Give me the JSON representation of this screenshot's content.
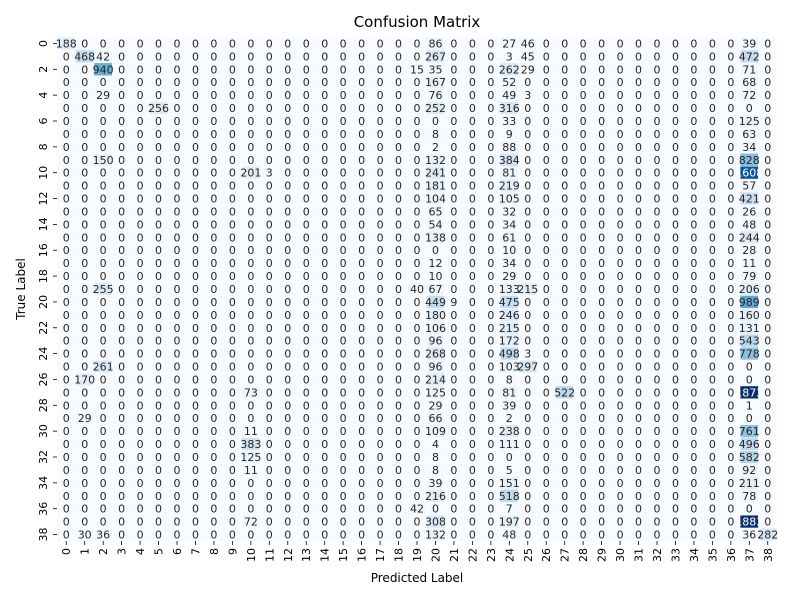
{
  "chart_data": {
    "type": "heatmap",
    "title": "Confusion Matrix",
    "xlabel": "Predicted Label",
    "ylabel": "True Label",
    "row_labels": [
      "0",
      "1",
      "2",
      "3",
      "4",
      "5",
      "6",
      "7",
      "8",
      "9",
      "10",
      "11",
      "12",
      "13",
      "14",
      "15",
      "16",
      "17",
      "18",
      "19",
      "20",
      "21",
      "22",
      "23",
      "24",
      "25",
      "26",
      "27",
      "28",
      "29",
      "30",
      "31",
      "32",
      "33",
      "34",
      "35",
      "36",
      "37",
      "38"
    ],
    "x_tick_labels": [
      "0",
      "1",
      "2",
      "3",
      "4",
      "5",
      "6",
      "7",
      "8",
      "9",
      "10",
      "11",
      "12",
      "13",
      "14",
      "15",
      "16",
      "17",
      "18",
      "19",
      "20",
      "21",
      "22",
      "23",
      "24",
      "25",
      "26",
      "27",
      "28",
      "29",
      "30",
      "31",
      "32",
      "33",
      "34",
      "35",
      "36",
      "37",
      "38"
    ],
    "y_tick_labels": [
      "0",
      "2",
      "4",
      "6",
      "8",
      "10",
      "12",
      "14",
      "16",
      "18",
      "20",
      "22",
      "24",
      "26",
      "28",
      "30",
      "32",
      "34",
      "36",
      "38"
    ],
    "colormap": [
      "#f7fbff",
      "#deebf7",
      "#c6dbef",
      "#9ecae1",
      "#6baed6",
      "#4292c6",
      "#2171b5",
      "#08519c",
      "#08306b"
    ],
    "vmin": 0,
    "vmax": 1883,
    "matrix": [
      [
        188,
        0,
        0,
        0,
        0,
        0,
        0,
        0,
        0,
        0,
        0,
        0,
        0,
        0,
        0,
        0,
        0,
        0,
        0,
        0,
        86,
        0,
        0,
        0,
        27,
        46,
        0,
        0,
        0,
        0,
        0,
        0,
        0,
        0,
        0,
        0,
        0,
        39,
        0
      ],
      [
        0,
        468,
        42,
        0,
        0,
        0,
        0,
        0,
        0,
        0,
        0,
        0,
        0,
        0,
        0,
        0,
        0,
        0,
        0,
        0,
        267,
        0,
        0,
        0,
        3,
        45,
        0,
        0,
        0,
        0,
        0,
        0,
        0,
        0,
        0,
        0,
        0,
        472,
        0
      ],
      [
        0,
        0,
        940,
        0,
        0,
        0,
        0,
        0,
        0,
        0,
        0,
        0,
        0,
        0,
        0,
        0,
        0,
        0,
        0,
        15,
        35,
        0,
        0,
        0,
        262,
        29,
        0,
        0,
        0,
        0,
        0,
        0,
        0,
        0,
        0,
        0,
        0,
        71,
        0
      ],
      [
        0,
        0,
        0,
        0,
        0,
        0,
        0,
        0,
        0,
        0,
        0,
        0,
        0,
        0,
        0,
        0,
        0,
        0,
        0,
        0,
        167,
        0,
        0,
        0,
        52,
        0,
        0,
        0,
        0,
        0,
        0,
        0,
        0,
        0,
        0,
        0,
        0,
        68,
        0
      ],
      [
        0,
        0,
        29,
        0,
        0,
        0,
        0,
        0,
        0,
        0,
        0,
        0,
        0,
        0,
        0,
        0,
        0,
        0,
        0,
        0,
        76,
        0,
        0,
        0,
        49,
        3,
        0,
        0,
        0,
        0,
        0,
        0,
        0,
        0,
        0,
        0,
        0,
        72,
        0
      ],
      [
        0,
        0,
        0,
        0,
        0,
        256,
        0,
        0,
        0,
        0,
        0,
        0,
        0,
        0,
        0,
        0,
        0,
        0,
        0,
        0,
        252,
        0,
        0,
        0,
        316,
        0,
        0,
        0,
        0,
        0,
        0,
        0,
        0,
        0,
        0,
        0,
        0,
        0,
        0
      ],
      [
        0,
        0,
        0,
        0,
        0,
        0,
        0,
        0,
        0,
        0,
        0,
        0,
        0,
        0,
        0,
        0,
        0,
        0,
        0,
        0,
        0,
        0,
        0,
        0,
        33,
        0,
        0,
        0,
        0,
        0,
        0,
        0,
        0,
        0,
        0,
        0,
        0,
        125,
        0
      ],
      [
        0,
        0,
        0,
        0,
        0,
        0,
        0,
        0,
        0,
        0,
        0,
        0,
        0,
        0,
        0,
        0,
        0,
        0,
        0,
        0,
        8,
        0,
        0,
        0,
        9,
        0,
        0,
        0,
        0,
        0,
        0,
        0,
        0,
        0,
        0,
        0,
        0,
        63,
        0
      ],
      [
        0,
        0,
        0,
        0,
        0,
        0,
        0,
        0,
        0,
        0,
        0,
        0,
        0,
        0,
        0,
        0,
        0,
        0,
        0,
        0,
        2,
        0,
        0,
        0,
        88,
        0,
        0,
        0,
        0,
        0,
        0,
        0,
        0,
        0,
        0,
        0,
        0,
        34,
        0
      ],
      [
        0,
        0,
        150,
        0,
        0,
        0,
        0,
        0,
        0,
        0,
        0,
        0,
        0,
        0,
        0,
        0,
        0,
        0,
        0,
        0,
        132,
        0,
        0,
        0,
        384,
        0,
        0,
        0,
        0,
        0,
        0,
        0,
        0,
        0,
        0,
        0,
        0,
        828,
        0
      ],
      [
        0,
        0,
        0,
        0,
        0,
        0,
        0,
        0,
        0,
        0,
        201,
        3,
        0,
        0,
        0,
        0,
        0,
        0,
        0,
        0,
        241,
        0,
        0,
        0,
        81,
        0,
        0,
        0,
        0,
        0,
        0,
        0,
        0,
        0,
        0,
        0,
        0,
        1608,
        0
      ],
      [
        0,
        0,
        0,
        0,
        0,
        0,
        0,
        0,
        0,
        0,
        0,
        0,
        0,
        0,
        0,
        0,
        0,
        0,
        0,
        0,
        181,
        0,
        0,
        0,
        219,
        0,
        0,
        0,
        0,
        0,
        0,
        0,
        0,
        0,
        0,
        0,
        0,
        57,
        0
      ],
      [
        0,
        0,
        0,
        0,
        0,
        0,
        0,
        0,
        0,
        0,
        0,
        0,
        0,
        0,
        0,
        0,
        0,
        0,
        0,
        0,
        104,
        0,
        0,
        0,
        105,
        0,
        0,
        0,
        0,
        0,
        0,
        0,
        0,
        0,
        0,
        0,
        0,
        421,
        0
      ],
      [
        0,
        0,
        0,
        0,
        0,
        0,
        0,
        0,
        0,
        0,
        0,
        0,
        0,
        0,
        0,
        0,
        0,
        0,
        0,
        0,
        65,
        0,
        0,
        0,
        32,
        0,
        0,
        0,
        0,
        0,
        0,
        0,
        0,
        0,
        0,
        0,
        0,
        26,
        0
      ],
      [
        0,
        0,
        0,
        0,
        0,
        0,
        0,
        0,
        0,
        0,
        0,
        0,
        0,
        0,
        0,
        0,
        0,
        0,
        0,
        0,
        54,
        0,
        0,
        0,
        34,
        0,
        0,
        0,
        0,
        0,
        0,
        0,
        0,
        0,
        0,
        0,
        0,
        48,
        0
      ],
      [
        0,
        0,
        0,
        0,
        0,
        0,
        0,
        0,
        0,
        0,
        0,
        0,
        0,
        0,
        0,
        0,
        0,
        0,
        0,
        0,
        138,
        0,
        0,
        0,
        61,
        0,
        0,
        0,
        0,
        0,
        0,
        0,
        0,
        0,
        0,
        0,
        0,
        244,
        0
      ],
      [
        0,
        0,
        0,
        0,
        0,
        0,
        0,
        0,
        0,
        0,
        0,
        0,
        0,
        0,
        0,
        0,
        0,
        0,
        0,
        0,
        0,
        0,
        0,
        0,
        10,
        0,
        0,
        0,
        0,
        0,
        0,
        0,
        0,
        0,
        0,
        0,
        0,
        28,
        0
      ],
      [
        0,
        0,
        0,
        0,
        0,
        0,
        0,
        0,
        0,
        0,
        0,
        0,
        0,
        0,
        0,
        0,
        0,
        0,
        0,
        0,
        12,
        0,
        0,
        0,
        34,
        0,
        0,
        0,
        0,
        0,
        0,
        0,
        0,
        0,
        0,
        0,
        0,
        11,
        0
      ],
      [
        0,
        0,
        0,
        0,
        0,
        0,
        0,
        0,
        0,
        0,
        0,
        0,
        0,
        0,
        0,
        0,
        0,
        0,
        0,
        0,
        10,
        0,
        0,
        0,
        29,
        0,
        0,
        0,
        0,
        0,
        0,
        0,
        0,
        0,
        0,
        0,
        0,
        79,
        0
      ],
      [
        0,
        0,
        255,
        0,
        0,
        0,
        0,
        0,
        0,
        0,
        0,
        0,
        0,
        0,
        0,
        0,
        0,
        0,
        0,
        40,
        67,
        0,
        0,
        0,
        133,
        215,
        0,
        0,
        0,
        0,
        0,
        0,
        0,
        0,
        0,
        0,
        0,
        206,
        0
      ],
      [
        0,
        0,
        0,
        0,
        0,
        0,
        0,
        0,
        0,
        0,
        0,
        0,
        0,
        0,
        0,
        0,
        0,
        0,
        0,
        0,
        449,
        9,
        0,
        0,
        475,
        0,
        0,
        0,
        0,
        0,
        0,
        0,
        0,
        0,
        0,
        0,
        0,
        989,
        0
      ],
      [
        0,
        0,
        0,
        0,
        0,
        0,
        0,
        0,
        0,
        0,
        0,
        0,
        0,
        0,
        0,
        0,
        0,
        0,
        0,
        0,
        180,
        0,
        0,
        0,
        246,
        0,
        0,
        0,
        0,
        0,
        0,
        0,
        0,
        0,
        0,
        0,
        0,
        160,
        0
      ],
      [
        0,
        0,
        0,
        0,
        0,
        0,
        0,
        0,
        0,
        0,
        0,
        0,
        0,
        0,
        0,
        0,
        0,
        0,
        0,
        0,
        106,
        0,
        0,
        0,
        215,
        0,
        0,
        0,
        0,
        0,
        0,
        0,
        0,
        0,
        0,
        0,
        0,
        131,
        0
      ],
      [
        0,
        0,
        0,
        0,
        0,
        0,
        0,
        0,
        0,
        0,
        0,
        0,
        0,
        0,
        0,
        0,
        0,
        0,
        0,
        0,
        96,
        0,
        0,
        0,
        172,
        0,
        0,
        0,
        0,
        0,
        0,
        0,
        0,
        0,
        0,
        0,
        0,
        543,
        0
      ],
      [
        0,
        0,
        0,
        0,
        0,
        0,
        0,
        0,
        0,
        0,
        0,
        0,
        0,
        0,
        0,
        0,
        0,
        0,
        0,
        0,
        268,
        0,
        0,
        0,
        498,
        3,
        0,
        0,
        0,
        0,
        0,
        0,
        0,
        0,
        0,
        0,
        0,
        778,
        0
      ],
      [
        0,
        0,
        261,
        0,
        0,
        0,
        0,
        0,
        0,
        0,
        0,
        0,
        0,
        0,
        0,
        0,
        0,
        0,
        0,
        0,
        96,
        0,
        0,
        0,
        103,
        297,
        0,
        0,
        0,
        0,
        0,
        0,
        0,
        0,
        0,
        0,
        0,
        0,
        0
      ],
      [
        0,
        170,
        0,
        0,
        0,
        0,
        0,
        0,
        0,
        0,
        0,
        0,
        0,
        0,
        0,
        0,
        0,
        0,
        0,
        0,
        214,
        0,
        0,
        0,
        8,
        0,
        0,
        0,
        0,
        0,
        0,
        0,
        0,
        0,
        0,
        0,
        0,
        0,
        0
      ],
      [
        0,
        0,
        0,
        0,
        0,
        0,
        0,
        0,
        0,
        0,
        73,
        0,
        0,
        0,
        0,
        0,
        0,
        0,
        0,
        0,
        125,
        0,
        0,
        0,
        81,
        0,
        0,
        522,
        0,
        0,
        0,
        0,
        0,
        0,
        0,
        0,
        0,
        1873,
        0
      ],
      [
        0,
        0,
        0,
        0,
        0,
        0,
        0,
        0,
        0,
        0,
        0,
        0,
        0,
        0,
        0,
        0,
        0,
        0,
        0,
        0,
        29,
        0,
        0,
        0,
        39,
        0,
        0,
        0,
        0,
        0,
        0,
        0,
        0,
        0,
        0,
        0,
        0,
        1,
        0
      ],
      [
        0,
        29,
        0,
        0,
        0,
        0,
        0,
        0,
        0,
        0,
        0,
        0,
        0,
        0,
        0,
        0,
        0,
        0,
        0,
        0,
        66,
        0,
        0,
        0,
        2,
        0,
        0,
        0,
        0,
        0,
        0,
        0,
        0,
        0,
        0,
        0,
        0,
        0,
        0
      ],
      [
        0,
        0,
        0,
        0,
        0,
        0,
        0,
        0,
        0,
        0,
        11,
        0,
        0,
        0,
        0,
        0,
        0,
        0,
        0,
        0,
        109,
        0,
        0,
        0,
        238,
        0,
        0,
        0,
        0,
        0,
        0,
        0,
        0,
        0,
        0,
        0,
        0,
        761,
        0
      ],
      [
        0,
        0,
        0,
        0,
        0,
        0,
        0,
        0,
        0,
        0,
        383,
        0,
        0,
        0,
        0,
        0,
        0,
        0,
        0,
        0,
        4,
        0,
        0,
        0,
        111,
        0,
        0,
        0,
        0,
        0,
        0,
        0,
        0,
        0,
        0,
        0,
        0,
        496,
        0
      ],
      [
        0,
        0,
        0,
        0,
        0,
        0,
        0,
        0,
        0,
        0,
        125,
        0,
        0,
        0,
        0,
        0,
        0,
        0,
        0,
        0,
        8,
        0,
        0,
        0,
        0,
        0,
        0,
        0,
        0,
        0,
        0,
        0,
        0,
        0,
        0,
        0,
        0,
        582,
        0
      ],
      [
        0,
        0,
        0,
        0,
        0,
        0,
        0,
        0,
        0,
        0,
        11,
        0,
        0,
        0,
        0,
        0,
        0,
        0,
        0,
        0,
        8,
        0,
        0,
        0,
        5,
        0,
        0,
        0,
        0,
        0,
        0,
        0,
        0,
        0,
        0,
        0,
        0,
        92,
        0
      ],
      [
        0,
        0,
        0,
        0,
        0,
        0,
        0,
        0,
        0,
        0,
        0,
        0,
        0,
        0,
        0,
        0,
        0,
        0,
        0,
        0,
        39,
        0,
        0,
        0,
        151,
        0,
        0,
        0,
        0,
        0,
        0,
        0,
        0,
        0,
        0,
        0,
        0,
        211,
        0
      ],
      [
        0,
        0,
        0,
        0,
        0,
        0,
        0,
        0,
        0,
        0,
        0,
        0,
        0,
        0,
        0,
        0,
        0,
        0,
        0,
        0,
        216,
        0,
        0,
        0,
        518,
        0,
        0,
        0,
        0,
        0,
        0,
        0,
        0,
        0,
        0,
        0,
        0,
        78,
        0
      ],
      [
        0,
        0,
        0,
        0,
        0,
        0,
        0,
        0,
        0,
        0,
        0,
        0,
        0,
        0,
        0,
        0,
        0,
        0,
        0,
        42,
        0,
        0,
        0,
        0,
        7,
        0,
        0,
        0,
        0,
        0,
        0,
        0,
        0,
        0,
        0,
        0,
        0,
        0,
        0
      ],
      [
        0,
        0,
        0,
        0,
        0,
        0,
        0,
        0,
        0,
        0,
        72,
        0,
        0,
        0,
        0,
        0,
        0,
        0,
        0,
        0,
        308,
        0,
        0,
        0,
        197,
        0,
        0,
        0,
        0,
        0,
        0,
        0,
        0,
        0,
        0,
        0,
        0,
        1883,
        0
      ],
      [
        0,
        30,
        36,
        0,
        0,
        0,
        0,
        0,
        0,
        0,
        0,
        0,
        0,
        0,
        0,
        0,
        0,
        0,
        0,
        0,
        132,
        0,
        0,
        0,
        48,
        0,
        0,
        0,
        0,
        0,
        0,
        0,
        0,
        0,
        0,
        0,
        0,
        36,
        282
      ]
    ]
  }
}
